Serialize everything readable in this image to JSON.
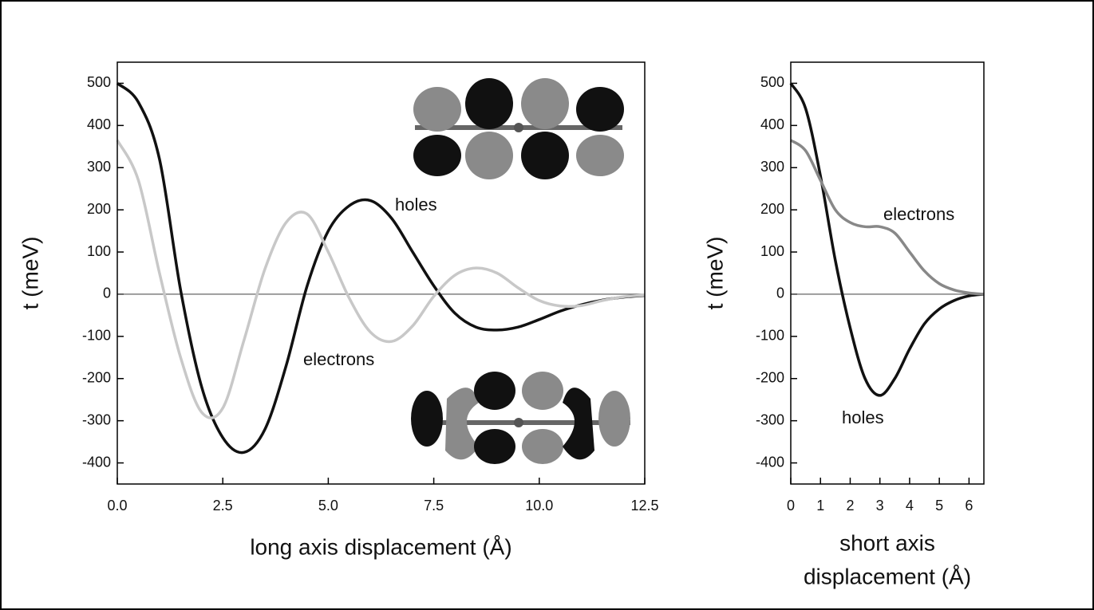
{
  "chart_data": [
    {
      "type": "line",
      "x_label": "long axis displacement (Å)",
      "y_label": "t (meV)",
      "xlim": [
        0,
        12.5
      ],
      "ylim": [
        -450,
        550
      ],
      "xticks": [
        {
          "value": 0,
          "label": "0.0"
        },
        2.5,
        {
          "value": 5,
          "label": "5.0"
        },
        7.5,
        {
          "value": 10,
          "label": "10.0"
        },
        12.5
      ],
      "yticks": [
        -400,
        -300,
        -200,
        -100,
        0,
        100,
        200,
        300,
        400,
        500
      ],
      "zero_line": true,
      "x": [
        0,
        0.5,
        1,
        1.5,
        2,
        2.5,
        3,
        3.5,
        4,
        4.5,
        5,
        5.5,
        6,
        6.5,
        7,
        7.5,
        8,
        8.5,
        9,
        9.5,
        10,
        10.5,
        11,
        11.5,
        12,
        12.5
      ],
      "series": [
        {
          "name": "holes",
          "color": "#111111",
          "values": [
            500,
            455,
            320,
            10,
            -220,
            -340,
            -375,
            -320,
            -170,
            20,
            150,
            210,
            222,
            180,
            100,
            20,
            -45,
            -78,
            -85,
            -78,
            -60,
            -40,
            -25,
            -14,
            -7,
            -3
          ]
        },
        {
          "name": "electrons",
          "color": "#c8c8c8",
          "values": [
            365,
            270,
            50,
            -150,
            -280,
            -270,
            -110,
            60,
            170,
            190,
            100,
            -10,
            -90,
            -112,
            -75,
            -5,
            45,
            62,
            50,
            15,
            -15,
            -28,
            -27,
            -15,
            -6,
            -2
          ]
        }
      ]
    },
    {
      "type": "line",
      "x_label": [
        "short axis",
        "displacement (Å)"
      ],
      "y_label": "t (meV)",
      "xlim": [
        0,
        6.5
      ],
      "ylim": [
        -450,
        550
      ],
      "xticks": [
        0,
        1,
        2,
        3,
        4,
        5,
        6
      ],
      "yticks": [
        -400,
        -300,
        -200,
        -100,
        0,
        100,
        200,
        300,
        400,
        500
      ],
      "zero_line": true,
      "x": [
        0,
        0.5,
        1,
        1.5,
        2,
        2.5,
        3,
        3.5,
        4,
        4.5,
        5,
        5.5,
        6,
        6.5
      ],
      "series": [
        {
          "name": "holes",
          "color": "#111111",
          "values": [
            500,
            440,
            280,
            80,
            -80,
            -200,
            -240,
            -200,
            -130,
            -70,
            -35,
            -15,
            -4,
            0
          ]
        },
        {
          "name": "electrons",
          "color": "#888888",
          "values": [
            365,
            340,
            270,
            200,
            170,
            160,
            160,
            145,
            100,
            55,
            25,
            10,
            3,
            0
          ]
        }
      ]
    }
  ]
}
